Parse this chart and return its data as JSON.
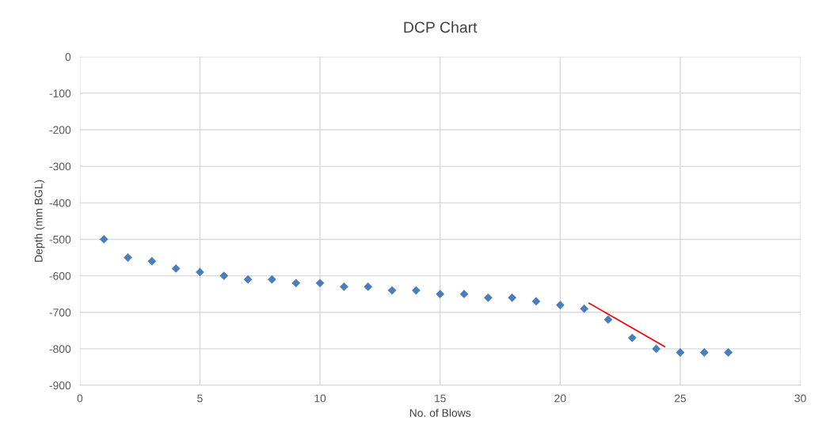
{
  "chart_data": {
    "type": "scatter",
    "title": "DCP Chart",
    "xlabel": "No. of Blows",
    "ylabel": "Depth (mm BGL)",
    "x": [
      1,
      2,
      3,
      4,
      5,
      6,
      7,
      8,
      9,
      10,
      11,
      12,
      13,
      14,
      15,
      16,
      17,
      18,
      19,
      20,
      21,
      22,
      23,
      24,
      25,
      26,
      27
    ],
    "series": [
      {
        "color": "#4a7ebb",
        "marker": "diamond",
        "values": [
          -500,
          -550,
          -560,
          -580,
          -590,
          -600,
          -610,
          -610,
          -620,
          -620,
          -630,
          -630,
          -640,
          -640,
          -650,
          -650,
          -660,
          -660,
          -670,
          -680,
          -690,
          -720,
          -770,
          -800,
          -810,
          -810,
          -810
        ]
      },
      {
        "type": "line",
        "color": "#ff0000",
        "marker": "none",
        "x": [
          21.2,
          24.35
        ],
        "values": [
          -675,
          -794
        ]
      }
    ],
    "xlim": [
      0,
      30
    ],
    "xticks": [
      0,
      5,
      10,
      15,
      20,
      25,
      30
    ],
    "ylim": [
      -900,
      0
    ],
    "yticks": [
      -900,
      -800,
      -700,
      -600,
      -500,
      -400,
      -300,
      -200,
      -100,
      0
    ],
    "grid": true,
    "legend": false
  }
}
